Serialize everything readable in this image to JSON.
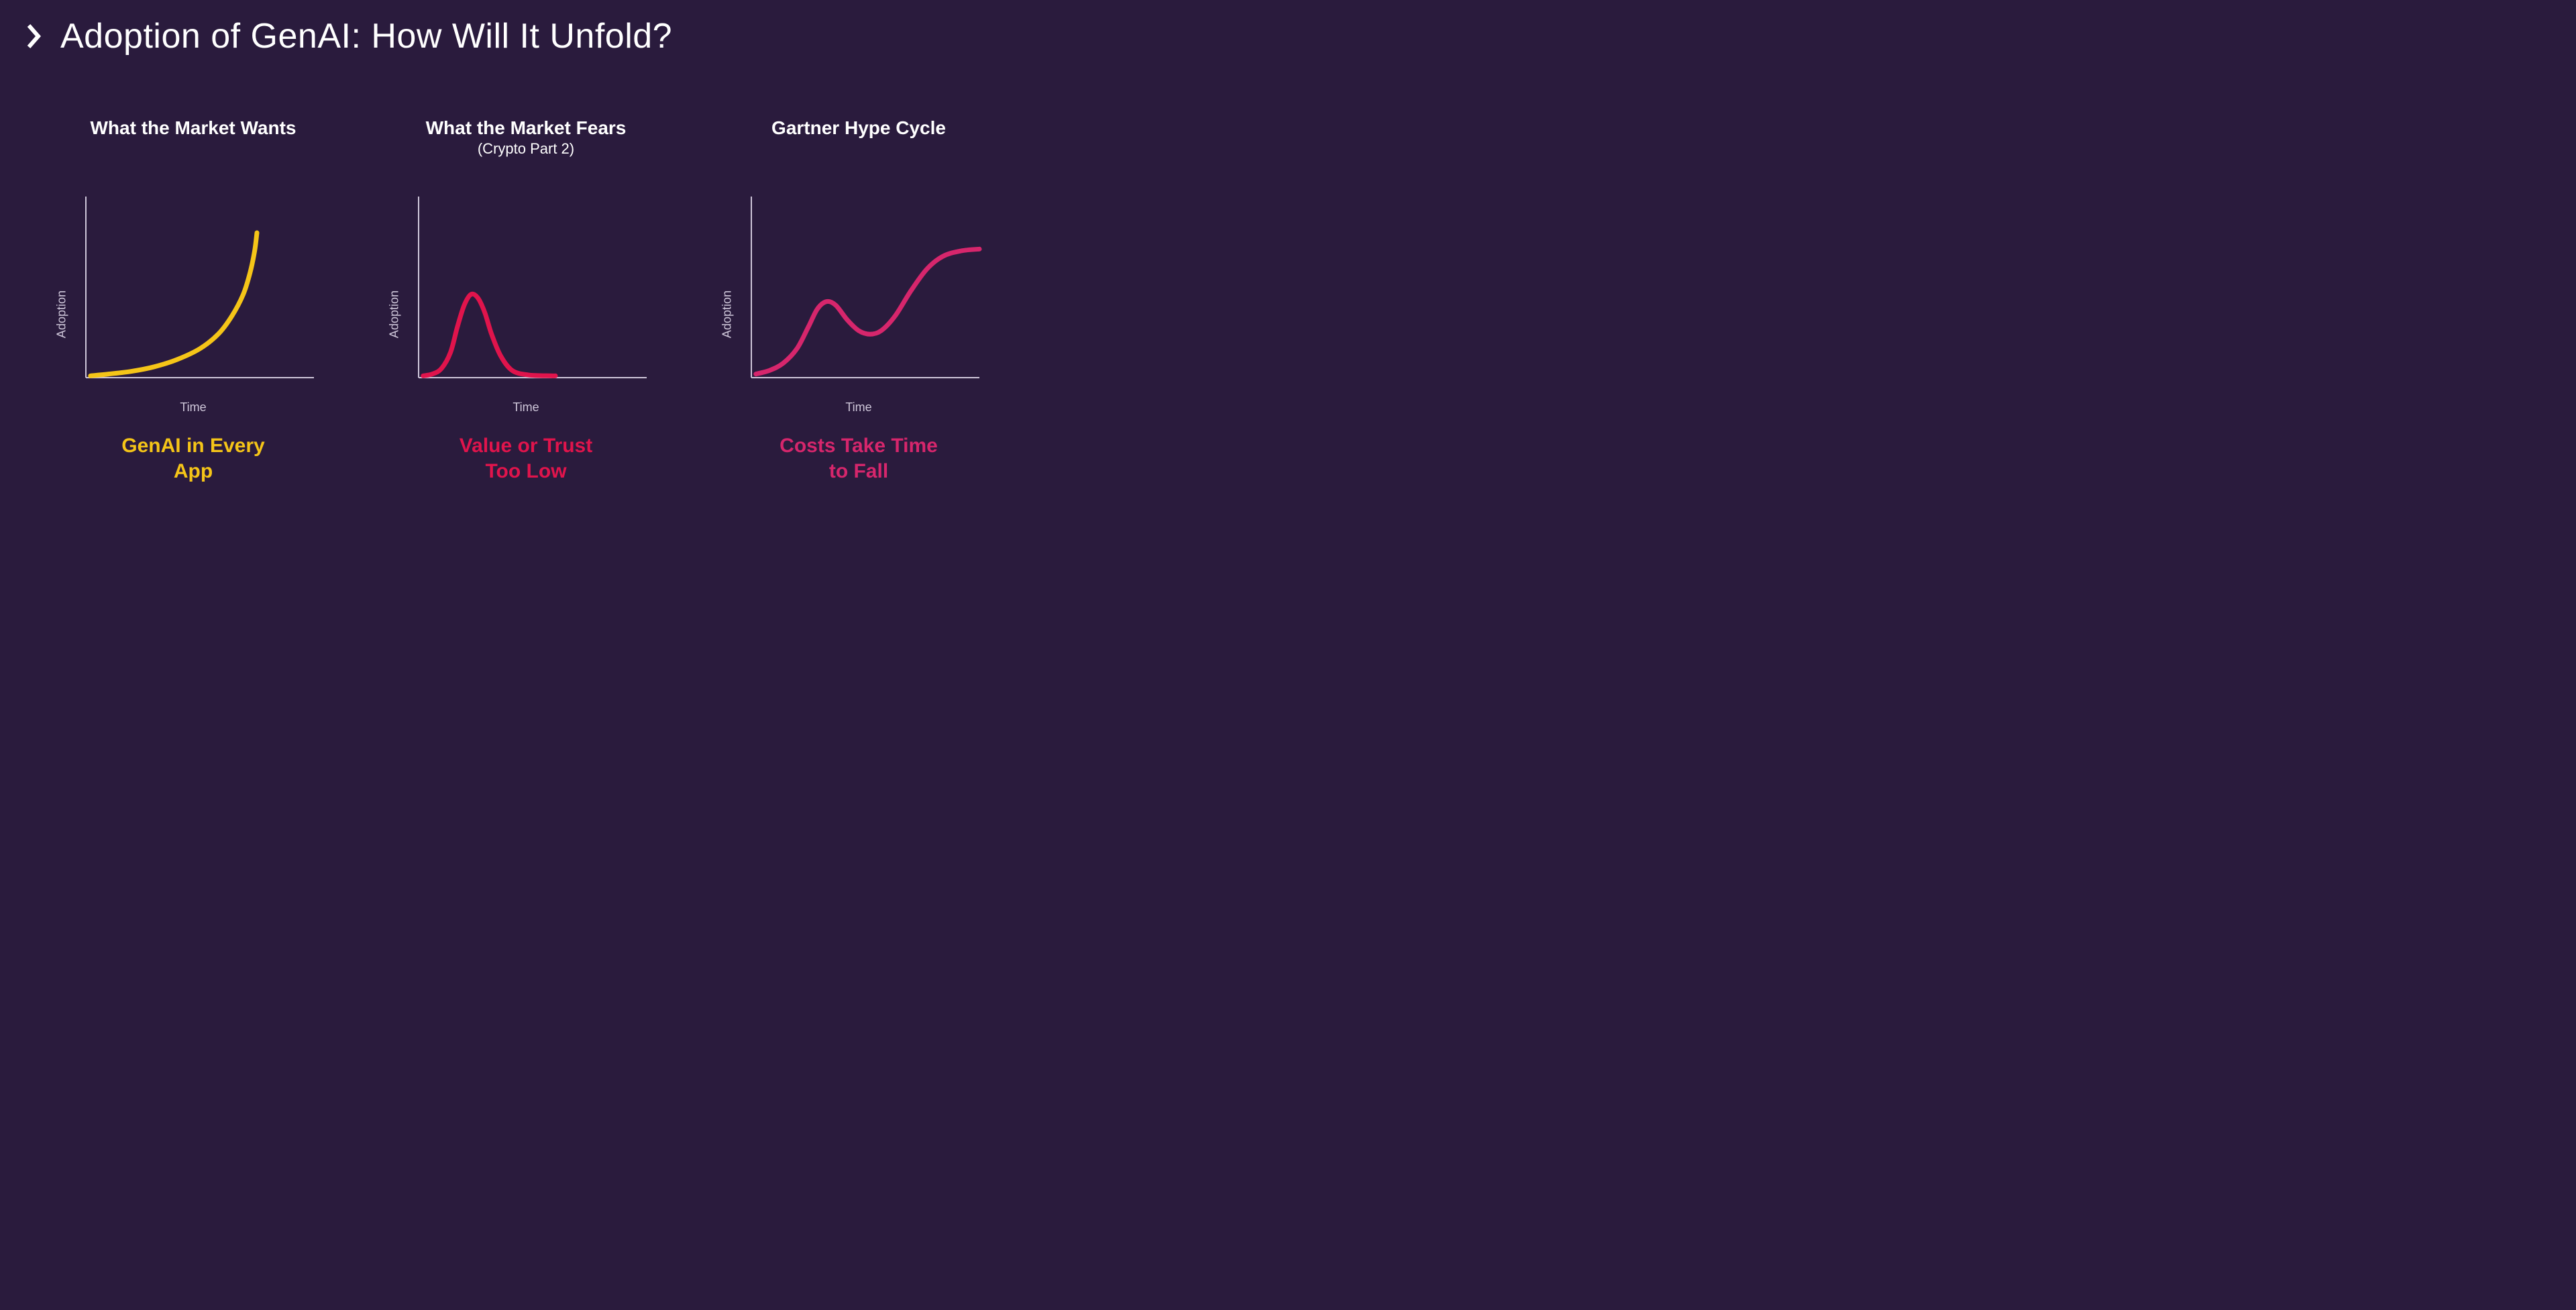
{
  "background_color": "#2a1b3d",
  "title": "Adoption of GenAI: How Will It Unfold?",
  "title_color": "#ffffff",
  "title_fontsize": 52,
  "title_fontweight": 300,
  "chevron_color": "#ffffff",
  "axis_color": "#cfc7da",
  "axis_stroke_width": 2,
  "axis_label_color": "#cfc7da",
  "axis_label_fontsize": 18,
  "curve_stroke_width": 7,
  "panels": [
    {
      "title": "What the Market Wants",
      "subtitle": "",
      "caption": "GenAI in Every\nApp",
      "caption_color": "#f5c518",
      "curve_color": "#f5c518",
      "y_label": "Adoption",
      "x_label": "Time",
      "chart_type": "line",
      "xlim": [
        0,
        100
      ],
      "ylim": [
        0,
        100
      ],
      "curve_points": [
        [
          2,
          1
        ],
        [
          10,
          2
        ],
        [
          20,
          3.5
        ],
        [
          30,
          6
        ],
        [
          40,
          10
        ],
        [
          50,
          16
        ],
        [
          58,
          24
        ],
        [
          64,
          34
        ],
        [
          69,
          46
        ],
        [
          72,
          58
        ],
        [
          74,
          70
        ],
        [
          75,
          80
        ]
      ]
    },
    {
      "title": "What the Market Fears",
      "subtitle": "(Crypto Part 2)",
      "caption": "Value or Trust\nToo Low",
      "caption_color": "#e0144c",
      "curve_color": "#e0144c",
      "y_label": "Adoption",
      "x_label": "Time",
      "chart_type": "line",
      "xlim": [
        0,
        100
      ],
      "ylim": [
        0,
        100
      ],
      "curve_points": [
        [
          2,
          1
        ],
        [
          6,
          2
        ],
        [
          10,
          5
        ],
        [
          14,
          14
        ],
        [
          17,
          28
        ],
        [
          20,
          40
        ],
        [
          23,
          46
        ],
        [
          26,
          44
        ],
        [
          29,
          36
        ],
        [
          32,
          24
        ],
        [
          36,
          12
        ],
        [
          41,
          4
        ],
        [
          48,
          1.5
        ],
        [
          58,
          1
        ],
        [
          60,
          1
        ]
      ]
    },
    {
      "title": "Gartner Hype Cycle",
      "subtitle": "",
      "caption": "Costs Take Time\nto Fall",
      "caption_color": "#d6266c",
      "curve_color": "#d6266c",
      "y_label": "Adoption",
      "x_label": "Time",
      "chart_type": "line",
      "xlim": [
        0,
        100
      ],
      "ylim": [
        0,
        100
      ],
      "curve_points": [
        [
          2,
          2
        ],
        [
          8,
          4
        ],
        [
          14,
          8
        ],
        [
          20,
          16
        ],
        [
          25,
          28
        ],
        [
          29,
          38
        ],
        [
          33,
          42
        ],
        [
          37,
          40
        ],
        [
          42,
          32
        ],
        [
          47,
          26
        ],
        [
          52,
          24
        ],
        [
          57,
          26
        ],
        [
          63,
          34
        ],
        [
          70,
          48
        ],
        [
          77,
          60
        ],
        [
          84,
          67
        ],
        [
          92,
          70
        ],
        [
          100,
          71
        ]
      ]
    }
  ]
}
